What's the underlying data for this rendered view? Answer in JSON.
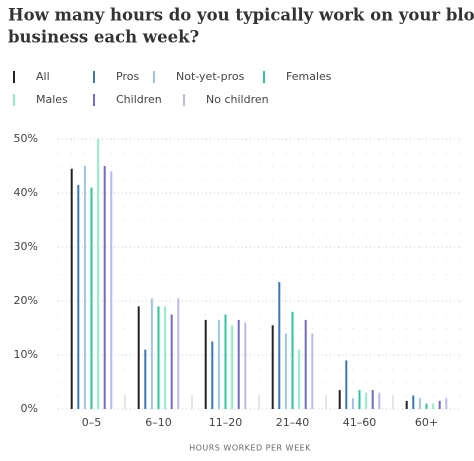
{
  "chart_data": {
    "type": "bar",
    "title": [
      "How many hours do you typically work on your blog or",
      "business each week?"
    ],
    "x_label": "HOURS WORKED PER WEEK",
    "categories": [
      "0–5",
      "6–10",
      "11–20",
      "21–40",
      "41–60",
      "60+"
    ],
    "series": [
      {
        "name": "All",
        "color": "#222222",
        "values": [
          44.5,
          19,
          16.5,
          15.5,
          3.5,
          1.5
        ]
      },
      {
        "name": "Pros",
        "color": "#3a78b5",
        "values": [
          41.5,
          11,
          12.5,
          23.5,
          9,
          2.5
        ]
      },
      {
        "name": "Not-yet-pros",
        "color": "#9ec4ea",
        "values": [
          45,
          20.5,
          16.5,
          14,
          2,
          2
        ]
      },
      {
        "name": "Females",
        "color": "#2bc79a",
        "values": [
          41,
          19,
          17.5,
          18,
          3.5,
          1
        ]
      },
      {
        "name": "Males",
        "color": "#8ff0c8",
        "values": [
          50,
          19,
          15.5,
          11,
          3,
          1
        ]
      },
      {
        "name": "Children",
        "color": "#6f6bc6",
        "values": [
          45,
          17.5,
          16.5,
          16.5,
          3.5,
          1.5
        ]
      },
      {
        "name": "No children",
        "color": "#b9b8ef",
        "values": [
          44,
          20.5,
          16,
          14,
          3,
          2
        ]
      }
    ],
    "ylim": [
      0,
      50
    ],
    "yticks": [
      {
        "value": 0,
        "label": "0%"
      },
      {
        "value": 10,
        "label": "10%"
      },
      {
        "value": 20,
        "label": "20%"
      },
      {
        "value": 30,
        "label": "30%"
      },
      {
        "value": 40,
        "label": "40%"
      },
      {
        "value": 50,
        "label": "50%"
      }
    ],
    "grid": true
  }
}
